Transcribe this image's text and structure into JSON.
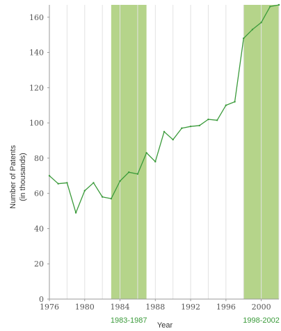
{
  "chart_data": {
    "type": "line",
    "xlabel": "Year",
    "ylabel_lines": [
      "Number of Patents",
      "(in thousands)"
    ],
    "xlim": [
      1976,
      2002
    ],
    "ylim": [
      0,
      167
    ],
    "x_ticks": [
      1976,
      1980,
      1984,
      1988,
      1992,
      1996,
      2000
    ],
    "y_ticks": [
      0,
      20,
      40,
      60,
      80,
      100,
      120,
      140,
      160
    ],
    "grid": "vertical",
    "series": [
      {
        "x": [
          1976,
          1977,
          1978,
          1979,
          1980,
          1981,
          1982,
          1983,
          1984,
          1985,
          1986,
          1987,
          1988,
          1989,
          1990,
          1991,
          1992,
          1993,
          1994,
          1995,
          1996,
          1997,
          1998,
          1999,
          2000,
          2001,
          2002
        ],
        "y": [
          70,
          65.5,
          66,
          49,
          61.5,
          66,
          58,
          57,
          67,
          72,
          71,
          83,
          78,
          95,
          90.5,
          97,
          98,
          98.5,
          102,
          101.5,
          110,
          112,
          148,
          153,
          157,
          166,
          167
        ]
      }
    ],
    "highlight_bands": [
      {
        "start": 1983,
        "end": 1987,
        "label": "1983-1987"
      },
      {
        "start": 1998,
        "end": 2002,
        "label": "1998-2002"
      }
    ],
    "colors": {
      "line": "#3a9a3a",
      "band": "#b5d48a",
      "band_label": "#3a9a3a",
      "grid": "#e2e2e2",
      "axis": "#9a9a9a"
    }
  }
}
